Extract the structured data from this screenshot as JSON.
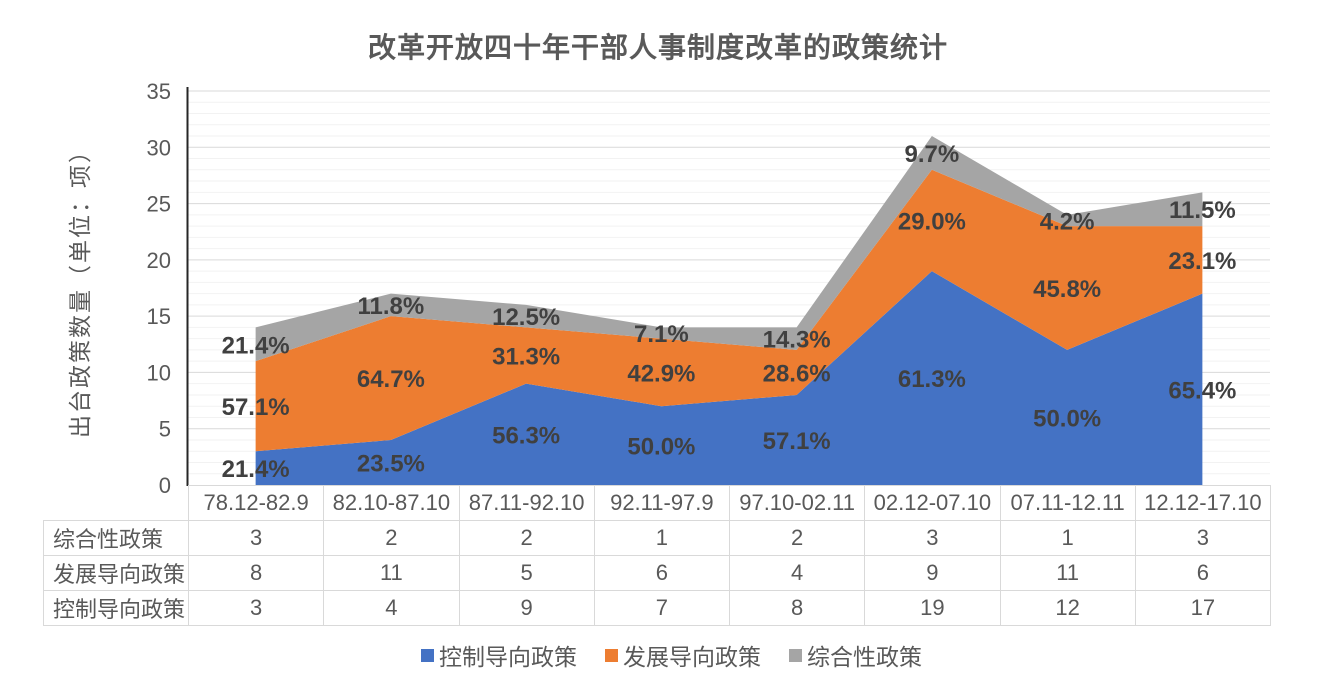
{
  "chart_data": {
    "type": "area",
    "stacked": true,
    "title": "改革开放四十年干部人事制度改革的政策统计",
    "ylabel": "出台政策数量（单位：项）",
    "xlabel": "",
    "ylim": [
      0,
      35
    ],
    "y_tick_step": 5,
    "y_minor_grid_step": 1,
    "grid": true,
    "legend_position": "bottom",
    "categories": [
      "78.12-82.9",
      "82.10-87.10",
      "87.11-92.10",
      "92.11-97.9",
      "97.10-02.11",
      "02.12-07.10",
      "07.11-12.11",
      "12.12-17.10"
    ],
    "series": [
      {
        "name": "控制导向政策",
        "color": "#4472C4",
        "values": [
          3,
          4,
          9,
          7,
          8,
          19,
          12,
          17
        ],
        "percent_labels": [
          "21.4%",
          "23.5%",
          "56.3%",
          "50.0%",
          "57.1%",
          "61.3%",
          "50.0%",
          "65.4%"
        ]
      },
      {
        "name": "发展导向政策",
        "color": "#ED7D31",
        "values": [
          8,
          11,
          5,
          6,
          4,
          9,
          11,
          6
        ],
        "percent_labels": [
          "57.1%",
          "64.7%",
          "31.3%",
          "42.9%",
          "28.6%",
          "29.0%",
          "45.8%",
          "23.1%"
        ]
      },
      {
        "name": "综合性政策",
        "color": "#A5A5A5",
        "values": [
          3,
          2,
          2,
          1,
          2,
          3,
          1,
          3
        ],
        "percent_labels": [
          "21.4%",
          "11.8%",
          "12.5%",
          "7.1%",
          "14.3%",
          "9.7%",
          "4.2%",
          "11.5%"
        ]
      }
    ]
  },
  "data_table": {
    "rows": [
      {
        "label": "综合性政策",
        "values": [
          "3",
          "2",
          "2",
          "1",
          "2",
          "3",
          "1",
          "3"
        ]
      },
      {
        "label": "发展导向政策",
        "values": [
          "8",
          "11",
          "5",
          "6",
          "4",
          "9",
          "11",
          "6"
        ]
      },
      {
        "label": "控制导向政策",
        "values": [
          "3",
          "4",
          "9",
          "7",
          "8",
          "19",
          "12",
          "17"
        ]
      }
    ]
  },
  "legend": {
    "items": [
      {
        "label": "控制导向政策",
        "color": "#4472C4"
      },
      {
        "label": "发展导向政策",
        "color": "#ED7D31"
      },
      {
        "label": "综合性政策",
        "color": "#A5A5A5"
      }
    ]
  },
  "colors": {
    "title_text": "#595959",
    "axis_text": "#595959",
    "data_label_text": "#404040",
    "axis_line": "#262626",
    "gridline_major": "#D9D9D9",
    "gridline_minor": "#F2F2F2",
    "table_border": "#D9D9D9",
    "background": "#FFFFFF"
  }
}
